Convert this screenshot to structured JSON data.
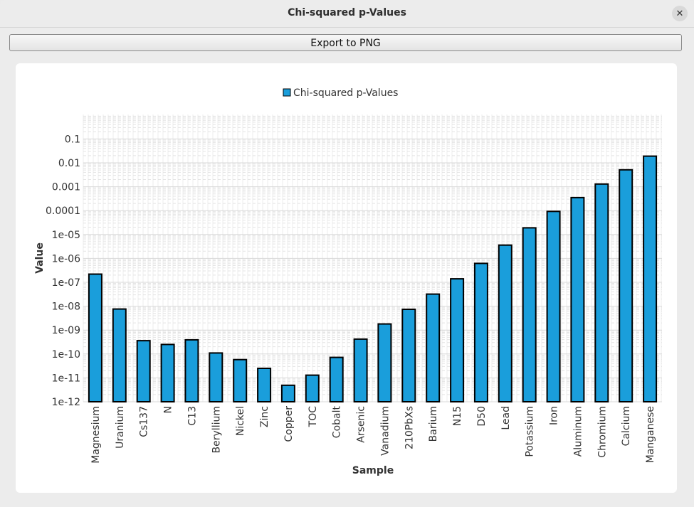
{
  "window": {
    "title": "Chi-squared p-Values",
    "close_glyph": "✕"
  },
  "toolbar": {
    "export_label": "Export to PNG"
  },
  "chart_data": {
    "type": "bar",
    "title": "",
    "xlabel": "Sample",
    "ylabel": "Value",
    "yscale": "log",
    "ylim": [
      1e-12,
      1
    ],
    "legend": {
      "position": "top-center",
      "entries": [
        "Chi-squared p-Values"
      ]
    },
    "grid": true,
    "bar_color": "#1a9edb",
    "y_ticks": [
      "0.1",
      "0.01",
      "0.001",
      "0.0001",
      "1e-05",
      "1e-06",
      "1e-07",
      "1e-08",
      "1e-09",
      "1e-10",
      "1e-11",
      "1e-12"
    ],
    "y_tick_values": [
      0.1,
      0.01,
      0.001,
      0.0001,
      1e-05,
      1e-06,
      1e-07,
      1e-08,
      1e-09,
      1e-10,
      1e-11,
      1e-12
    ],
    "categories": [
      "Magnesium",
      "Uranium",
      "Cs137",
      "N",
      "C13",
      "Beryllium",
      "Nickel",
      "Zinc",
      "Copper",
      "TOC",
      "Cobalt",
      "Arsenic",
      "Vanadium",
      "210PbXs",
      "Barium",
      "N15",
      "D50",
      "Lead",
      "Potassium",
      "Iron",
      "Aluminum",
      "Chromium",
      "Calcium",
      "Manganese"
    ],
    "series": [
      {
        "name": "Chi-squared p-Values",
        "values": [
          2.2e-07,
          7.6e-09,
          3.6e-10,
          2.5e-10,
          3.9e-10,
          1.1e-10,
          5.8e-11,
          2.5e-11,
          4.9e-12,
          1.3e-11,
          7.2e-11,
          4.2e-10,
          1.8e-09,
          7.4e-09,
          3.2e-08,
          1.4e-07,
          6.2e-07,
          3.6e-06,
          1.9e-05,
          9.3e-05,
          0.00035,
          0.0013,
          0.0051,
          0.019
        ]
      }
    ]
  }
}
